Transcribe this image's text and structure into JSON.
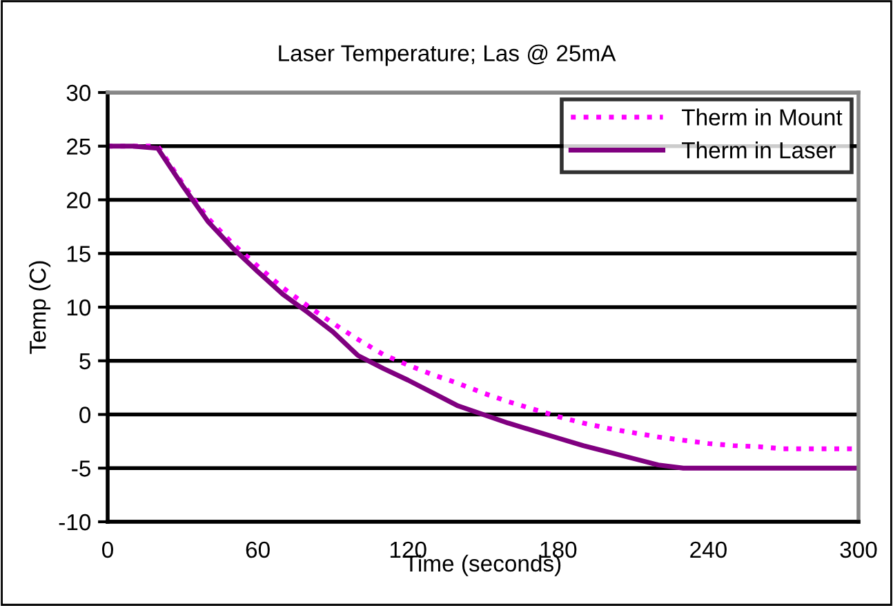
{
  "chart_data": {
    "type": "line",
    "title": "Laser Temperature; Las @ 25mA",
    "xlabel": "Time (seconds)",
    "ylabel": "Temp (C)",
    "x": [
      0,
      10,
      20,
      30,
      40,
      50,
      60,
      70,
      80,
      90,
      100,
      110,
      120,
      130,
      140,
      150,
      160,
      170,
      180,
      190,
      200,
      210,
      220,
      230,
      240,
      250,
      260,
      270,
      280,
      290,
      300
    ],
    "series": [
      {
        "name": "Therm in Mount",
        "color": "#ff00ff",
        "line_style": "dotted",
        "values": [
          25,
          25,
          25,
          21.5,
          18.3,
          15.9,
          13.8,
          11.8,
          10.1,
          8.5,
          7.0,
          5.6,
          4.6,
          3.7,
          2.9,
          2.0,
          1.2,
          0.5,
          -0.2,
          -0.8,
          -1.3,
          -1.7,
          -2.1,
          -2.4,
          -2.7,
          -2.9,
          -3.0,
          -3.2,
          -3.2,
          -3.2,
          -3.2
        ]
      },
      {
        "name": "Therm in Laser",
        "color": "#800080",
        "line_style": "solid",
        "values": [
          25,
          25,
          24.8,
          21.3,
          18.0,
          15.5,
          13.3,
          11.2,
          9.5,
          7.7,
          5.5,
          4.3,
          3.2,
          2.0,
          0.8,
          0.0,
          -0.8,
          -1.5,
          -2.2,
          -2.9,
          -3.5,
          -4.1,
          -4.7,
          -5.0,
          -5.0,
          -5,
          -5,
          -5,
          -5,
          -5,
          -5
        ]
      }
    ],
    "xlim": [
      0,
      300
    ],
    "xticks": [
      0,
      60,
      120,
      180,
      240,
      300
    ],
    "ylim": [
      -10,
      30
    ],
    "yticks": [
      -10,
      -5,
      0,
      5,
      10,
      15,
      20,
      25,
      30
    ],
    "grid": "y",
    "legend": "top right"
  }
}
